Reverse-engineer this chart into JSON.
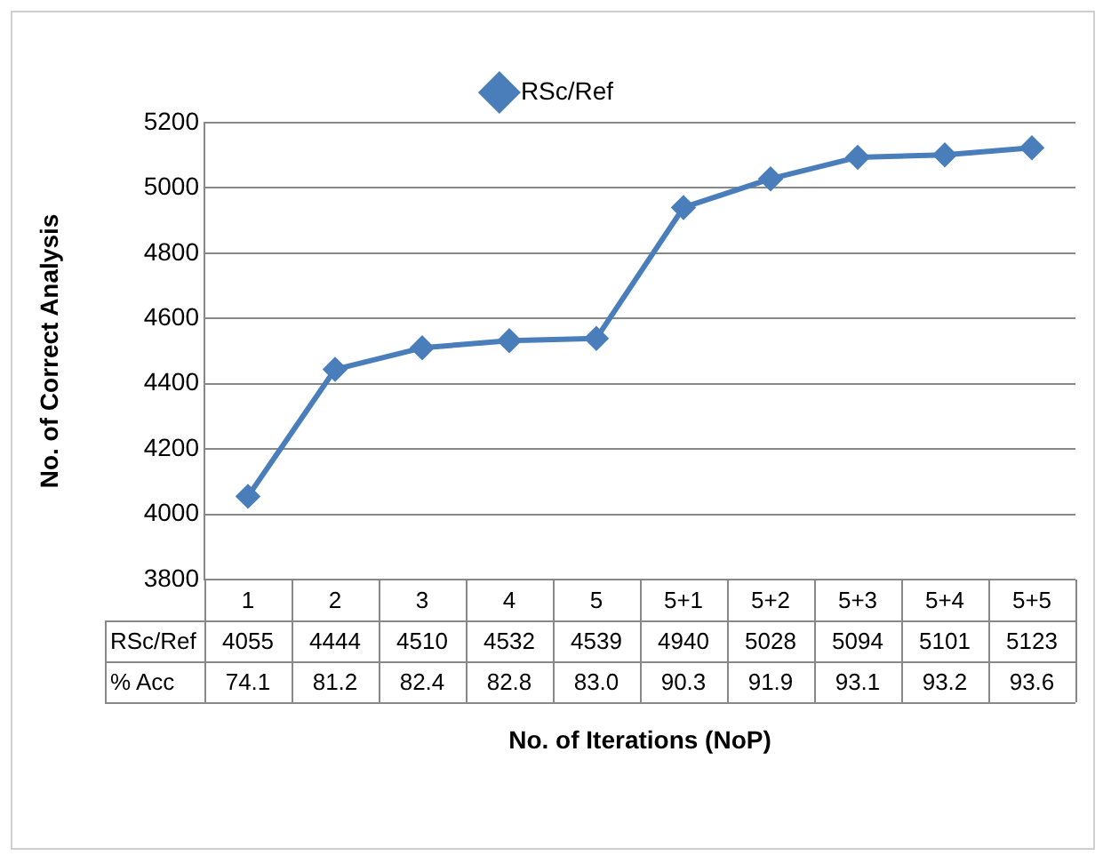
{
  "chart_data": {
    "type": "line",
    "xlabel": "No. of Iterations (NoP)",
    "ylabel": "No. of Correct Analysis",
    "categories": [
      "1",
      "2",
      "3",
      "4",
      "5",
      "5+1",
      "5+2",
      "5+3",
      "5+4",
      "5+5"
    ],
    "series": [
      {
        "name": "RSc/Ref",
        "color": "#4a7ebb",
        "values": [
          4055,
          4444,
          4510,
          4532,
          4539,
          4940,
          5028,
          5094,
          5101,
          5123
        ]
      }
    ],
    "ylim": [
      3800,
      5200
    ],
    "yticks": [
      3800,
      4000,
      4200,
      4400,
      4600,
      4800,
      5000,
      5200
    ],
    "grid": "y",
    "legend": "top",
    "marker": "diamond",
    "line_style": "solid",
    "data_labels": true,
    "annotations": [
      "% Acc",
      "74.1",
      "81.2",
      "82.4",
      "82.8",
      "83.0",
      "90.3",
      "91.9",
      "93.1",
      "93.2",
      "93.6"
    ]
  }
}
